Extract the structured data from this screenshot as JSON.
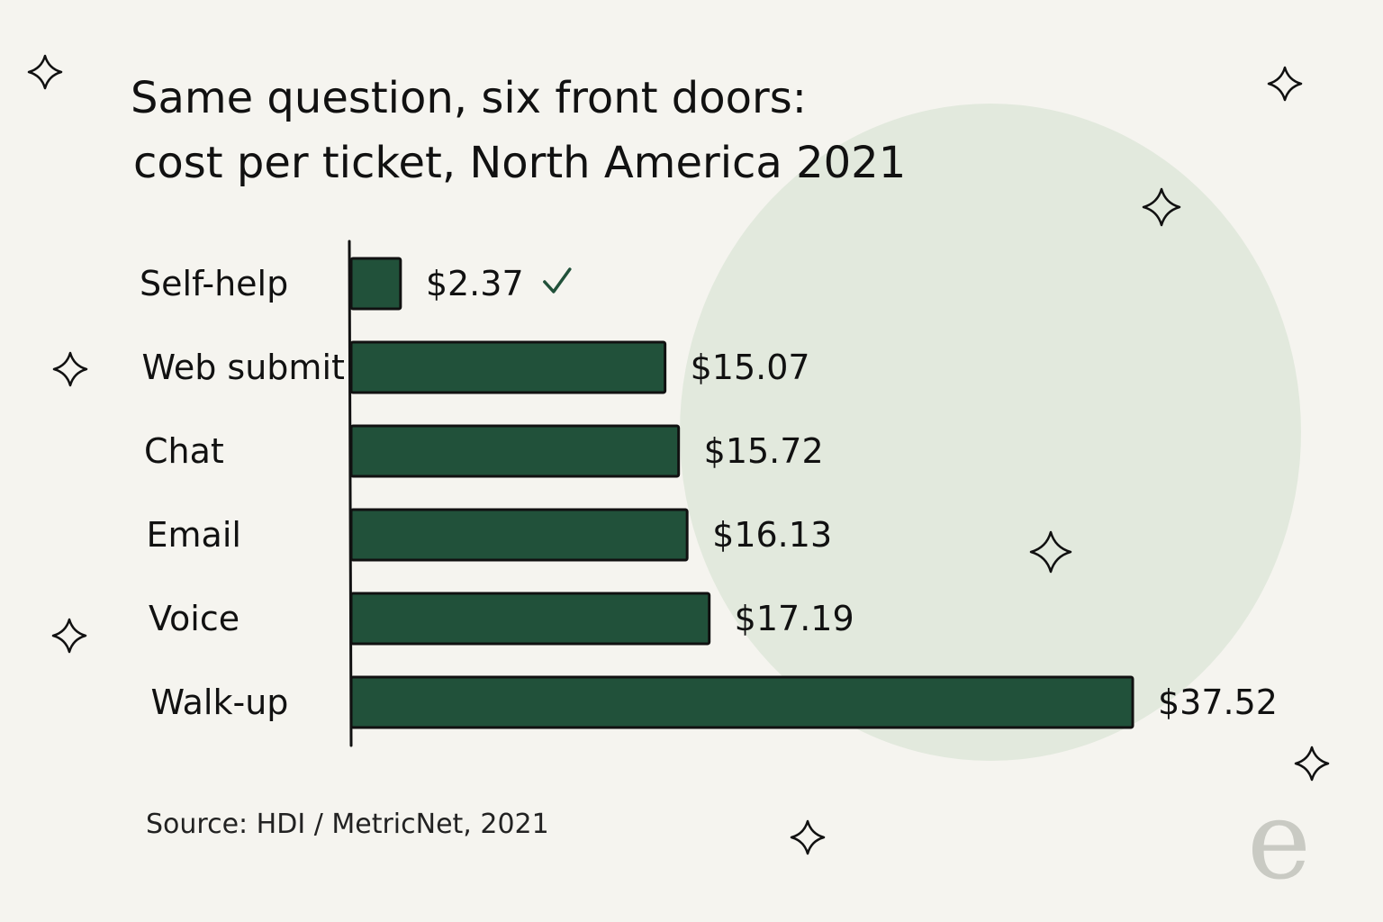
{
  "title_lines": [
    "Same question, six front doors:",
    "cost per ticket, North America 2021"
  ],
  "source": "Source: HDI / MetricNet, 2021",
  "brand_letter": "e",
  "colors": {
    "background": "#f5f4ef",
    "bar": "#21513a",
    "circle": "#e2e9dd",
    "check": "#21513a",
    "ink": "#111111"
  },
  "icons": {
    "sparkle": "sparkle-icon",
    "check": "check-icon"
  },
  "chart_data": {
    "type": "bar",
    "orientation": "horizontal",
    "title": "Same question, six front doors: cost per ticket, North America 2021",
    "categories": [
      "Self-help",
      "Web submit",
      "Chat",
      "Email",
      "Voice",
      "Walk-up"
    ],
    "values": [
      2.37,
      15.07,
      15.72,
      16.13,
      17.19,
      37.52
    ],
    "value_labels": [
      "$2.37",
      "$15.07",
      "$15.72",
      "$16.13",
      "$17.19",
      "$37.52"
    ],
    "highlight": "Self-help",
    "xlim": [
      0,
      37.52
    ],
    "xlabel": "",
    "ylabel": "",
    "grid": false,
    "legend": "none"
  }
}
